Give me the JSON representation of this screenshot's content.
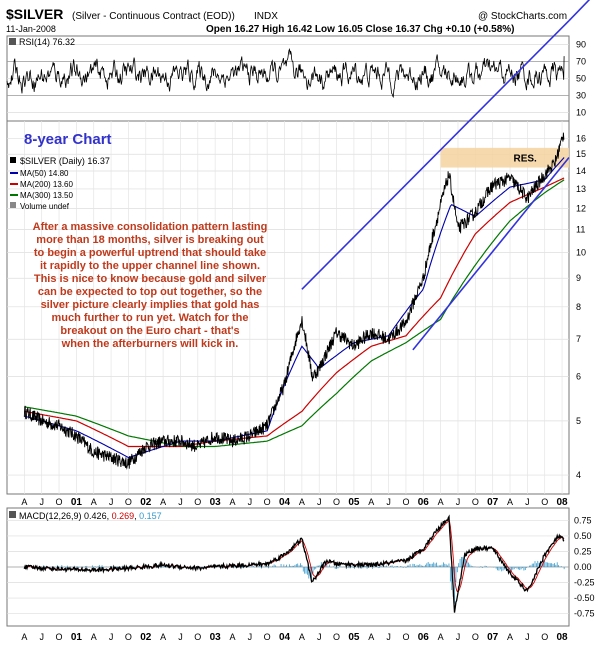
{
  "header": {
    "symbol": "$SILVER",
    "name": "(Silver - Continuous Contract (EOD))",
    "exchange": "INDX",
    "watermark": "@ StockCharts.com",
    "date": "11-Jan-2008",
    "ohlc": "Open 16.27   High 16.42   Low 16.05   Close 16.37   Chg +0.10 (+0.58%)"
  },
  "rsi_label": "RSI(14) 76.32",
  "chart_title": "8-year Chart",
  "legend": {
    "price": "$SILVER (Daily) 16.37",
    "ma50": "MA(50) 14.80",
    "ma200": "MA(200) 13.60",
    "ma300": "MA(300) 13.50",
    "volume": "Volume undef"
  },
  "annotation_lines": [
    "After a massive consolidation pattern lasting",
    "more than 18 months, silver is breaking out",
    "to begin a powerful uptrend that should take",
    "it rapidly to the upper channel line shown.",
    "This is nice to know because gold and silver",
    "can be expected to top out together, so the",
    "silver picture clearly implies that gold has",
    "much further to run yet. Watch for the",
    "breakout on the Euro chart - that's",
    "when the afterburners will kick in."
  ],
  "res_label": "RES.",
  "macd": {
    "label": "MACD(12,26,9)",
    "v1": "0.426",
    "v2": "0.269",
    "v3": "0.157"
  },
  "colors": {
    "price": "#000000",
    "ma50": "#0000aa",
    "ma200": "#cc0000",
    "ma300": "#007700",
    "channel": "#3333dd",
    "resistance": "#f5d3a0",
    "annotation": "#c0391b",
    "title": "#3333cc"
  },
  "chart_data": {
    "type": "line",
    "scale": "log",
    "price_axis_ticks": [
      4,
      5,
      6,
      7,
      8,
      9,
      10,
      11,
      12,
      13,
      14,
      15,
      16
    ],
    "rsi_axis_ticks": [
      10,
      30,
      50,
      70,
      90
    ],
    "macd_axis_ticks": [
      -0.75,
      -0.5,
      -0.25,
      0.0,
      0.25,
      0.5,
      0.75
    ],
    "x_tick_labels": [
      "A",
      "J",
      "O",
      "01",
      "A",
      "J",
      "O",
      "02",
      "A",
      "J",
      "O",
      "03",
      "A",
      "J",
      "O",
      "04",
      "A",
      "J",
      "O",
      "05",
      "A",
      "J",
      "O",
      "06",
      "A",
      "J",
      "O",
      "07",
      "A",
      "J",
      "O",
      "08"
    ],
    "series": [
      {
        "name": "$SILVER (Daily)",
        "x": [
          2000.25,
          2000.5,
          2000.75,
          2001.0,
          2001.25,
          2001.5,
          2001.75,
          2002.0,
          2002.25,
          2002.5,
          2002.75,
          2003.0,
          2003.25,
          2003.5,
          2003.75,
          2004.0,
          2004.25,
          2004.4,
          2004.5,
          2004.75,
          2005.0,
          2005.25,
          2005.5,
          2005.75,
          2006.0,
          2006.2,
          2006.37,
          2006.5,
          2006.75,
          2007.0,
          2007.25,
          2007.5,
          2007.75,
          2007.9,
          2008.03
        ],
        "values": [
          5.2,
          5.0,
          4.9,
          4.7,
          4.4,
          4.3,
          4.2,
          4.5,
          4.6,
          4.6,
          4.5,
          4.7,
          4.6,
          4.7,
          4.9,
          5.8,
          7.6,
          6.0,
          6.2,
          7.2,
          6.8,
          7.2,
          7.0,
          7.5,
          9.0,
          11.5,
          13.8,
          11.0,
          11.8,
          13.2,
          13.6,
          12.5,
          13.8,
          14.5,
          16.37
        ]
      },
      {
        "name": "MA(50)",
        "x": [
          2000.25,
          2001.0,
          2001.75,
          2002.5,
          2003.0,
          2003.75,
          2004.25,
          2004.5,
          2005.0,
          2005.5,
          2006.0,
          2006.4,
          2006.75,
          2007.25,
          2007.75,
          2008.03
        ],
        "values": [
          5.1,
          4.8,
          4.3,
          4.6,
          4.6,
          4.8,
          6.8,
          6.2,
          6.9,
          7.1,
          8.6,
          12.2,
          11.6,
          13.1,
          13.5,
          14.8
        ]
      },
      {
        "name": "MA(200)",
        "x": [
          2000.25,
          2001.0,
          2001.75,
          2002.5,
          2003.0,
          2003.75,
          2004.25,
          2004.75,
          2005.25,
          2005.75,
          2006.25,
          2006.75,
          2007.25,
          2007.75,
          2008.03
        ],
        "values": [
          5.2,
          5.0,
          4.5,
          4.5,
          4.6,
          4.7,
          5.2,
          6.1,
          6.8,
          7.1,
          8.3,
          10.8,
          12.3,
          13.1,
          13.6
        ]
      },
      {
        "name": "MA(300)",
        "x": [
          2000.25,
          2001.0,
          2001.75,
          2002.5,
          2003.0,
          2003.75,
          2004.25,
          2004.75,
          2005.25,
          2005.75,
          2006.25,
          2006.75,
          2007.25,
          2007.75,
          2008.03
        ],
        "values": [
          5.3,
          5.1,
          4.7,
          4.5,
          4.5,
          4.6,
          4.9,
          5.6,
          6.4,
          6.9,
          7.6,
          9.5,
          11.4,
          12.8,
          13.5
        ]
      }
    ],
    "channel_lines": [
      {
        "x": [
          2004.25,
          2008.1
        ],
        "values": [
          8.6,
          26.0
        ]
      },
      {
        "x": [
          2005.85,
          2008.1
        ],
        "values": [
          6.7,
          14.8
        ]
      }
    ],
    "resistance_band": [
      14.2,
      15.4
    ],
    "macd_series": {
      "x": [
        2000.25,
        2000.75,
        2001.25,
        2001.75,
        2002.25,
        2002.75,
        2003.25,
        2003.75,
        2004.0,
        2004.25,
        2004.4,
        2004.6,
        2004.75,
        2005.25,
        2005.75,
        2006.0,
        2006.2,
        2006.37,
        2006.45,
        2006.6,
        2006.75,
        2007.0,
        2007.25,
        2007.5,
        2007.75,
        2007.95,
        2008.03
      ],
      "values": [
        0.0,
        -0.03,
        -0.05,
        -0.02,
        0.03,
        -0.02,
        0.02,
        0.05,
        0.2,
        0.45,
        -0.25,
        0.1,
        0.05,
        0.03,
        0.1,
        0.3,
        0.6,
        0.8,
        -0.7,
        0.2,
        0.3,
        0.3,
        -0.1,
        -0.4,
        0.2,
        0.5,
        0.426
      ]
    }
  }
}
